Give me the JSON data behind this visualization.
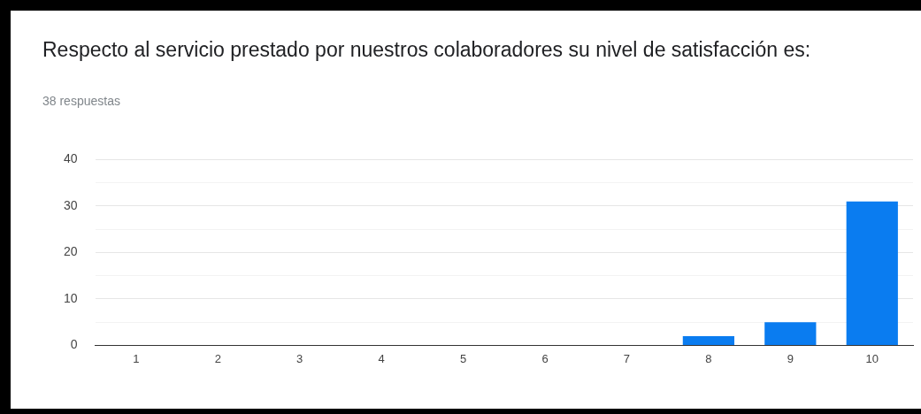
{
  "chart_data": {
    "type": "bar",
    "title": "Respecto al servicio prestado por nuestros colaboradores su nivel de satisfacción es:",
    "subtitle": "38 respuestas",
    "categories": [
      "1",
      "2",
      "3",
      "4",
      "5",
      "6",
      "7",
      "8",
      "9",
      "10"
    ],
    "values": [
      0,
      0,
      0,
      0,
      0,
      0,
      0,
      2,
      5,
      31
    ],
    "color": "#0a7cf0",
    "ylim": [
      0,
      40
    ],
    "yticks": [
      0,
      {
        "value": 5,
        "label": null
      },
      10,
      {
        "value": 15,
        "label": null
      },
      20,
      {
        "value": 25,
        "label": null
      },
      30,
      {
        "value": 35,
        "label": null
      },
      40
    ],
    "grid": "y",
    "legend": false
  }
}
